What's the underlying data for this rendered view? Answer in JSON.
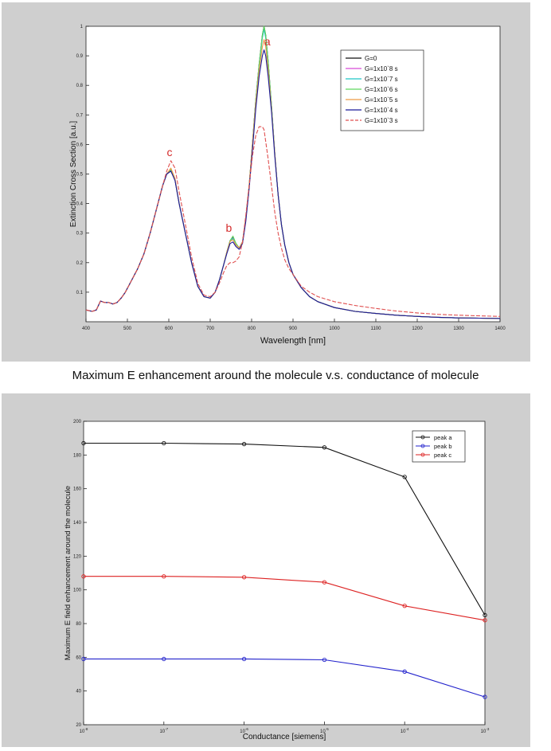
{
  "page_caption": "Maximum E enhancement around the molecule v.s. conductance of molecule",
  "colors": {
    "panel_bg": "#cfcfcf",
    "plot_bg": "#ffffff"
  },
  "chart_data": [
    {
      "type": "line",
      "title": "",
      "xlabel": "Wavelength [nm]",
      "ylabel": "Extinction Cross Section [a.u.]",
      "xlim": [
        400,
        1400
      ],
      "ylim": [
        0,
        1
      ],
      "xticks": [
        "400",
        "500",
        "600",
        "700",
        "800",
        "900",
        "1000",
        "1100",
        "1200",
        "1300",
        "1400"
      ],
      "yticks": [
        "0.1",
        "0.2",
        "0.3",
        "0.4",
        "0.5",
        "0.6",
        "0.7",
        "0.8",
        "0.9",
        "1"
      ],
      "grid": false,
      "legend_position": "top-right",
      "annotations": [
        {
          "text": "a",
          "x": 838,
          "y": 0.935,
          "color": "#d42a2a"
        },
        {
          "text": "b",
          "x": 745,
          "y": 0.305,
          "color": "#d42a2a"
        },
        {
          "text": "c",
          "x": 602,
          "y": 0.56,
          "color": "#d42a2a"
        }
      ],
      "series": [
        {
          "name": "G=0",
          "color": "#111111",
          "x": [
            400,
            415,
            425,
            435,
            445,
            455,
            465,
            475,
            485,
            495,
            510,
            525,
            540,
            555,
            570,
            585,
            595,
            605,
            615,
            625,
            640,
            655,
            670,
            685,
            700,
            712,
            722,
            732,
            740,
            748,
            755,
            762,
            770,
            778,
            786,
            794,
            802,
            810,
            818,
            826,
            830,
            834,
            840,
            848,
            856,
            864,
            872,
            880,
            890,
            900,
            920,
            940,
            960,
            1000,
            1050,
            1100,
            1150,
            1200,
            1250,
            1300,
            1350,
            1400
          ],
          "y": [
            0.04,
            0.035,
            0.04,
            0.07,
            0.065,
            0.065,
            0.06,
            0.065,
            0.08,
            0.1,
            0.14,
            0.18,
            0.23,
            0.3,
            0.38,
            0.46,
            0.5,
            0.51,
            0.48,
            0.4,
            0.3,
            0.2,
            0.12,
            0.085,
            0.08,
            0.1,
            0.14,
            0.19,
            0.235,
            0.275,
            0.285,
            0.265,
            0.25,
            0.27,
            0.35,
            0.46,
            0.6,
            0.75,
            0.87,
            0.97,
            1.0,
            0.97,
            0.88,
            0.73,
            0.57,
            0.43,
            0.33,
            0.26,
            0.2,
            0.16,
            0.115,
            0.085,
            0.068,
            0.048,
            0.035,
            0.028,
            0.022,
            0.018,
            0.015,
            0.013,
            0.012,
            0.011
          ]
        },
        {
          "name": "G=1x10`8 s",
          "color": "#d64ad6",
          "x": [
            400,
            415,
            425,
            435,
            445,
            455,
            465,
            475,
            485,
            495,
            510,
            525,
            540,
            555,
            570,
            585,
            595,
            605,
            615,
            625,
            640,
            655,
            670,
            685,
            700,
            712,
            722,
            732,
            740,
            748,
            755,
            762,
            770,
            778,
            786,
            794,
            802,
            810,
            818,
            826,
            830,
            834,
            840,
            848,
            856,
            864,
            872,
            880,
            890,
            900,
            920,
            940,
            960,
            1000,
            1050,
            1100,
            1150,
            1200,
            1250,
            1300,
            1350,
            1400
          ],
          "y": [
            0.04,
            0.035,
            0.04,
            0.07,
            0.065,
            0.065,
            0.06,
            0.065,
            0.08,
            0.1,
            0.14,
            0.18,
            0.23,
            0.3,
            0.38,
            0.46,
            0.5,
            0.512,
            0.48,
            0.4,
            0.3,
            0.2,
            0.12,
            0.085,
            0.08,
            0.1,
            0.14,
            0.19,
            0.235,
            0.275,
            0.283,
            0.264,
            0.25,
            0.27,
            0.35,
            0.46,
            0.6,
            0.75,
            0.87,
            0.965,
            0.995,
            0.965,
            0.88,
            0.73,
            0.57,
            0.43,
            0.33,
            0.26,
            0.2,
            0.16,
            0.115,
            0.085,
            0.068,
            0.048,
            0.035,
            0.028,
            0.022,
            0.018,
            0.015,
            0.013,
            0.012,
            0.011
          ]
        },
        {
          "name": "G=1x10`7 s",
          "color": "#1fc7c7",
          "x": [
            400,
            415,
            425,
            435,
            445,
            455,
            465,
            475,
            485,
            495,
            510,
            525,
            540,
            555,
            570,
            585,
            595,
            605,
            615,
            625,
            640,
            655,
            670,
            685,
            700,
            712,
            722,
            732,
            740,
            748,
            755,
            762,
            770,
            778,
            786,
            794,
            802,
            810,
            818,
            826,
            830,
            834,
            840,
            848,
            856,
            864,
            872,
            880,
            890,
            900,
            920,
            940,
            960,
            1000,
            1050,
            1100,
            1150,
            1200,
            1250,
            1300,
            1350,
            1400
          ],
          "y": [
            0.04,
            0.035,
            0.04,
            0.07,
            0.065,
            0.065,
            0.06,
            0.065,
            0.08,
            0.1,
            0.14,
            0.18,
            0.23,
            0.3,
            0.38,
            0.46,
            0.5,
            0.513,
            0.48,
            0.4,
            0.3,
            0.2,
            0.12,
            0.085,
            0.08,
            0.1,
            0.14,
            0.19,
            0.235,
            0.275,
            0.282,
            0.263,
            0.25,
            0.27,
            0.35,
            0.46,
            0.6,
            0.75,
            0.868,
            0.96,
            0.99,
            0.96,
            0.875,
            0.73,
            0.57,
            0.43,
            0.33,
            0.26,
            0.2,
            0.16,
            0.115,
            0.085,
            0.068,
            0.048,
            0.035,
            0.028,
            0.022,
            0.018,
            0.015,
            0.013,
            0.012,
            0.011
          ]
        },
        {
          "name": "G=1x10`6 s",
          "color": "#5fd65f",
          "x": [
            400,
            415,
            425,
            435,
            445,
            455,
            465,
            475,
            485,
            495,
            510,
            525,
            540,
            555,
            570,
            585,
            595,
            605,
            615,
            625,
            640,
            655,
            670,
            685,
            700,
            712,
            722,
            732,
            740,
            748,
            755,
            762,
            770,
            778,
            786,
            794,
            802,
            810,
            818,
            826,
            830,
            834,
            840,
            848,
            856,
            864,
            872,
            880,
            890,
            900,
            920,
            940,
            960,
            1000,
            1050,
            1100,
            1150,
            1200,
            1250,
            1300,
            1350,
            1400
          ],
          "y": [
            0.04,
            0.035,
            0.04,
            0.07,
            0.065,
            0.065,
            0.06,
            0.065,
            0.08,
            0.1,
            0.14,
            0.18,
            0.23,
            0.3,
            0.38,
            0.46,
            0.5,
            0.515,
            0.48,
            0.4,
            0.3,
            0.2,
            0.12,
            0.085,
            0.08,
            0.1,
            0.14,
            0.19,
            0.235,
            0.275,
            0.29,
            0.266,
            0.25,
            0.27,
            0.35,
            0.46,
            0.6,
            0.75,
            0.87,
            0.97,
            1.0,
            0.97,
            0.88,
            0.73,
            0.57,
            0.43,
            0.33,
            0.26,
            0.2,
            0.16,
            0.115,
            0.085,
            0.068,
            0.048,
            0.035,
            0.028,
            0.022,
            0.018,
            0.015,
            0.013,
            0.012,
            0.011
          ]
        },
        {
          "name": "G=1x10`5 s",
          "color": "#ee9a44",
          "x": [
            400,
            415,
            425,
            435,
            445,
            455,
            465,
            475,
            485,
            495,
            510,
            525,
            540,
            555,
            570,
            585,
            595,
            605,
            615,
            625,
            640,
            655,
            670,
            685,
            700,
            712,
            722,
            732,
            740,
            748,
            755,
            762,
            770,
            778,
            786,
            794,
            802,
            810,
            818,
            826,
            830,
            834,
            840,
            848,
            856,
            864,
            872,
            880,
            890,
            900,
            920,
            940,
            960,
            1000,
            1050,
            1100,
            1150,
            1200,
            1250,
            1300,
            1350,
            1400
          ],
          "y": [
            0.04,
            0.035,
            0.04,
            0.07,
            0.065,
            0.065,
            0.06,
            0.065,
            0.08,
            0.1,
            0.14,
            0.18,
            0.23,
            0.3,
            0.38,
            0.46,
            0.5,
            0.52,
            0.485,
            0.4,
            0.3,
            0.2,
            0.12,
            0.085,
            0.08,
            0.1,
            0.14,
            0.19,
            0.235,
            0.272,
            0.278,
            0.26,
            0.25,
            0.27,
            0.35,
            0.46,
            0.6,
            0.74,
            0.85,
            0.93,
            0.955,
            0.93,
            0.85,
            0.72,
            0.57,
            0.43,
            0.33,
            0.26,
            0.2,
            0.16,
            0.115,
            0.085,
            0.068,
            0.048,
            0.035,
            0.028,
            0.022,
            0.018,
            0.015,
            0.013,
            0.012,
            0.011
          ]
        },
        {
          "name": "G=1x10`4 s",
          "color": "#1a1a9a",
          "x": [
            400,
            415,
            425,
            435,
            445,
            455,
            465,
            475,
            485,
            495,
            510,
            525,
            540,
            555,
            570,
            585,
            595,
            605,
            615,
            625,
            640,
            655,
            670,
            685,
            700,
            712,
            722,
            732,
            740,
            748,
            755,
            762,
            770,
            778,
            786,
            794,
            802,
            810,
            818,
            826,
            830,
            834,
            840,
            848,
            856,
            864,
            872,
            880,
            890,
            900,
            920,
            940,
            960,
            1000,
            1050,
            1100,
            1150,
            1200,
            1250,
            1300,
            1350,
            1400
          ],
          "y": [
            0.04,
            0.035,
            0.04,
            0.07,
            0.065,
            0.065,
            0.06,
            0.065,
            0.08,
            0.1,
            0.14,
            0.18,
            0.23,
            0.3,
            0.38,
            0.46,
            0.5,
            0.51,
            0.478,
            0.4,
            0.3,
            0.2,
            0.12,
            0.085,
            0.08,
            0.1,
            0.14,
            0.19,
            0.23,
            0.265,
            0.27,
            0.255,
            0.245,
            0.265,
            0.34,
            0.45,
            0.58,
            0.72,
            0.83,
            0.9,
            0.92,
            0.9,
            0.83,
            0.71,
            0.56,
            0.43,
            0.33,
            0.26,
            0.2,
            0.16,
            0.115,
            0.085,
            0.068,
            0.048,
            0.035,
            0.028,
            0.022,
            0.018,
            0.015,
            0.013,
            0.012,
            0.011
          ]
        },
        {
          "name": "G=1x10`3 s",
          "color": "#e05050",
          "dashed": true,
          "x": [
            400,
            415,
            425,
            435,
            445,
            455,
            465,
            475,
            485,
            495,
            510,
            525,
            540,
            555,
            570,
            585,
            595,
            605,
            615,
            625,
            640,
            655,
            670,
            685,
            700,
            712,
            722,
            732,
            740,
            748,
            755,
            762,
            770,
            778,
            786,
            794,
            802,
            810,
            818,
            826,
            830,
            834,
            840,
            848,
            856,
            864,
            872,
            880,
            890,
            900,
            920,
            940,
            960,
            1000,
            1050,
            1100,
            1150,
            1200,
            1250,
            1300,
            1350,
            1400
          ],
          "y": [
            0.04,
            0.035,
            0.04,
            0.07,
            0.065,
            0.065,
            0.06,
            0.065,
            0.08,
            0.1,
            0.14,
            0.18,
            0.23,
            0.3,
            0.38,
            0.46,
            0.51,
            0.545,
            0.52,
            0.44,
            0.33,
            0.22,
            0.13,
            0.09,
            0.085,
            0.1,
            0.13,
            0.165,
            0.19,
            0.2,
            0.2,
            0.205,
            0.22,
            0.27,
            0.36,
            0.46,
            0.56,
            0.63,
            0.66,
            0.66,
            0.65,
            0.61,
            0.55,
            0.46,
            0.37,
            0.3,
            0.25,
            0.21,
            0.18,
            0.16,
            0.12,
            0.1,
            0.085,
            0.068,
            0.055,
            0.045,
            0.036,
            0.03,
            0.025,
            0.022,
            0.02,
            0.018
          ]
        }
      ]
    },
    {
      "type": "line",
      "title": "",
      "xlabel": "Conductance [siemens]",
      "ylabel": "Maximum E field enhancement around the molecule",
      "xscale": "log",
      "xlim": [
        1e-08,
        0.001
      ],
      "ylim": [
        20,
        200
      ],
      "xticks": [
        "10",
        "10",
        "10",
        "10",
        "10",
        "10"
      ],
      "xtick_exponents": [
        "-8",
        "-7",
        "-6",
        "-5",
        "-4",
        "-3"
      ],
      "yticks": [
        "20",
        "40",
        "60",
        "80",
        "100",
        "120",
        "140",
        "160",
        "180",
        "200"
      ],
      "grid": false,
      "legend_position": "top-right",
      "series": [
        {
          "name": "peak a",
          "color": "#111111",
          "x": [
            1e-08,
            1e-07,
            1e-06,
            1e-05,
            0.0001,
            0.001
          ],
          "y": [
            187,
            187,
            186.5,
            184.5,
            167,
            85
          ]
        },
        {
          "name": "peak b",
          "color": "#2222cc",
          "x": [
            1e-08,
            1e-07,
            1e-06,
            1e-05,
            0.0001,
            0.001
          ],
          "y": [
            59,
            59,
            59,
            58.5,
            51.5,
            36.5
          ]
        },
        {
          "name": "peak c",
          "color": "#dd2222",
          "x": [
            1e-08,
            1e-07,
            1e-06,
            1e-05,
            0.0001,
            0.001
          ],
          "y": [
            108,
            108,
            107.5,
            104.5,
            90.5,
            82
          ]
        }
      ]
    }
  ]
}
